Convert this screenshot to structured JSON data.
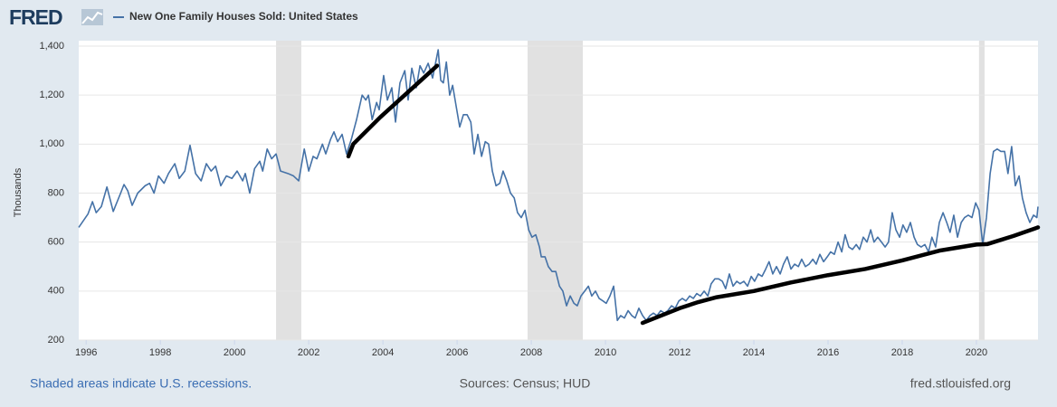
{
  "chart_data": {
    "type": "line",
    "logo": "FRED",
    "title": "New One Family Houses Sold: United States",
    "ylabel": "Thousands",
    "footer_left": "Shaded areas indicate U.S. recessions.",
    "footer_center": "Sources: Census; HUD",
    "footer_right": "fred.stlouisfed.org",
    "xlim": [
      1995.8,
      2021.66
    ],
    "xticks": [
      1996,
      1998,
      2000,
      2002,
      2004,
      2006,
      2008,
      2010,
      2012,
      2014,
      2016,
      2018,
      2020
    ],
    "ylim": [
      200,
      1400
    ],
    "yticks": [
      200,
      400,
      600,
      800,
      {
        "value": 1000,
        "label": "1,000"
      },
      {
        "value": 1200,
        "label": "1,200"
      },
      {
        "value": 1400,
        "label": "1,400"
      }
    ],
    "grid": true,
    "recessions": [
      [
        2001.12,
        2001.8
      ],
      [
        2007.9,
        2009.39
      ],
      [
        2020.07,
        2020.22
      ]
    ],
    "recession_color": "#e1e1e1",
    "series": [
      {
        "name": "New One Family Houses Sold: United States",
        "color": "#4572a7",
        "x": [
          1995.8,
          1996.05,
          1996.17,
          1996.27,
          1996.41,
          1996.56,
          1996.73,
          1996.93,
          1997.02,
          1997.12,
          1997.24,
          1997.39,
          1997.59,
          1997.71,
          1997.83,
          1997.95,
          1998.1,
          1998.22,
          1998.39,
          1998.51,
          1998.66,
          1998.8,
          1998.95,
          1999.1,
          1999.24,
          1999.37,
          1999.49,
          1999.63,
          1999.78,
          1999.93,
          2000.07,
          2000.22,
          2000.29,
          2000.41,
          2000.54,
          2000.68,
          2000.76,
          2000.88,
          2001.0,
          2001.12,
          2001.24,
          2001.44,
          2001.59,
          2001.73,
          2001.88,
          2002.0,
          2002.12,
          2002.22,
          2002.37,
          2002.46,
          2002.59,
          2002.68,
          2002.78,
          2002.9,
          2003.02,
          2003.15,
          2003.29,
          2003.44,
          2003.54,
          2003.61,
          2003.71,
          2003.83,
          2003.9,
          2004.02,
          2004.12,
          2004.24,
          2004.34,
          2004.46,
          2004.59,
          2004.68,
          2004.78,
          2004.9,
          2005.0,
          2005.1,
          2005.22,
          2005.34,
          2005.49,
          2005.56,
          2005.63,
          2005.71,
          2005.8,
          2005.88,
          2005.98,
          2006.07,
          2006.17,
          2006.27,
          2006.37,
          2006.46,
          2006.56,
          2006.66,
          2006.76,
          2006.85,
          2006.95,
          2007.05,
          2007.15,
          2007.24,
          2007.34,
          2007.44,
          2007.54,
          2007.63,
          2007.73,
          2007.83,
          2007.93,
          2008.02,
          2008.12,
          2008.22,
          2008.27,
          2008.37,
          2008.46,
          2008.56,
          2008.66,
          2008.76,
          2008.85,
          2008.95,
          2009.05,
          2009.15,
          2009.24,
          2009.34,
          2009.44,
          2009.54,
          2009.63,
          2009.73,
          2009.83,
          2009.93,
          2010.02,
          2010.12,
          2010.22,
          2010.32,
          2010.41,
          2010.51,
          2010.61,
          2010.71,
          2010.8,
          2010.9,
          2011.0,
          2011.1,
          2011.2,
          2011.29,
          2011.39,
          2011.49,
          2011.59,
          2011.68,
          2011.78,
          2011.88,
          2011.98,
          2012.07,
          2012.17,
          2012.27,
          2012.37,
          2012.46,
          2012.56,
          2012.66,
          2012.76,
          2012.85,
          2012.95,
          2013.05,
          2013.15,
          2013.24,
          2013.34,
          2013.44,
          2013.54,
          2013.63,
          2013.73,
          2013.83,
          2013.93,
          2014.02,
          2014.12,
          2014.22,
          2014.32,
          2014.41,
          2014.51,
          2014.61,
          2014.71,
          2014.8,
          2014.9,
          2015.0,
          2015.1,
          2015.2,
          2015.29,
          2015.39,
          2015.49,
          2015.59,
          2015.68,
          2015.78,
          2015.88,
          2015.98,
          2016.07,
          2016.17,
          2016.27,
          2016.37,
          2016.46,
          2016.56,
          2016.66,
          2016.76,
          2016.85,
          2016.95,
          2017.05,
          2017.15,
          2017.24,
          2017.34,
          2017.44,
          2017.54,
          2017.63,
          2017.73,
          2017.83,
          2017.93,
          2018.02,
          2018.12,
          2018.22,
          2018.32,
          2018.41,
          2018.51,
          2018.61,
          2018.71,
          2018.8,
          2018.9,
          2019.0,
          2019.1,
          2019.2,
          2019.29,
          2019.39,
          2019.49,
          2019.59,
          2019.68,
          2019.78,
          2019.88,
          2019.98,
          2020.07,
          2020.17,
          2020.27,
          2020.37,
          2020.46,
          2020.56,
          2020.66,
          2020.76,
          2020.85,
          2020.95,
          2021.05,
          2021.15,
          2021.24,
          2021.34,
          2021.44,
          2021.54,
          2021.63,
          2021.66
        ],
        "values": [
          660,
          715,
          765,
          720,
          745,
          825,
          725,
          800,
          835,
          810,
          750,
          800,
          830,
          840,
          800,
          870,
          840,
          880,
          920,
          860,
          890,
          995,
          880,
          850,
          920,
          890,
          910,
          830,
          870,
          860,
          890,
          850,
          880,
          800,
          900,
          930,
          890,
          980,
          940,
          960,
          890,
          880,
          870,
          850,
          980,
          890,
          950,
          940,
          1000,
          960,
          1020,
          1050,
          1010,
          1040,
          960,
          1020,
          1100,
          1200,
          1180,
          1200,
          1100,
          1170,
          1140,
          1280,
          1180,
          1230,
          1090,
          1250,
          1300,
          1180,
          1310,
          1230,
          1320,
          1290,
          1330,
          1270,
          1385,
          1260,
          1250,
          1335,
          1200,
          1240,
          1150,
          1070,
          1120,
          1120,
          1090,
          960,
          1040,
          950,
          1010,
          1000,
          890,
          830,
          840,
          890,
          850,
          800,
          780,
          720,
          700,
          730,
          650,
          620,
          630,
          580,
          540,
          540,
          500,
          480,
          480,
          420,
          400,
          340,
          380,
          350,
          340,
          380,
          400,
          420,
          380,
          400,
          370,
          360,
          350,
          380,
          420,
          280,
          300,
          290,
          320,
          300,
          290,
          330,
          300,
          280,
          300,
          310,
          300,
          320,
          310,
          320,
          340,
          330,
          360,
          370,
          360,
          380,
          370,
          390,
          380,
          400,
          380,
          430,
          450,
          450,
          440,
          410,
          470,
          420,
          440,
          430,
          440,
          420,
          460,
          440,
          470,
          460,
          490,
          520,
          470,
          500,
          470,
          510,
          540,
          490,
          510,
          500,
          530,
          500,
          510,
          530,
          510,
          550,
          520,
          540,
          560,
          550,
          600,
          560,
          630,
          580,
          570,
          590,
          570,
          620,
          600,
          650,
          600,
          620,
          600,
          580,
          600,
          720,
          650,
          620,
          670,
          640,
          680,
          620,
          590,
          580,
          590,
          560,
          620,
          580,
          680,
          720,
          680,
          640,
          710,
          620,
          680,
          700,
          710,
          700,
          760,
          730,
          590,
          700,
          880,
          970,
          980,
          970,
          970,
          880,
          990,
          830,
          870,
          780,
          720,
          680,
          710,
          700,
          745
        ]
      }
    ],
    "trend_lines": [
      {
        "color": "#000000",
        "x": [
          2003.07,
          2003.2,
          2003.93,
          2004.66,
          2005.46
        ],
        "values": [
          950,
          1000,
          1110,
          1210,
          1320
        ]
      },
      {
        "color": "#000000",
        "x": [
          2011.0,
          2011.5,
          2012.0,
          2012.5,
          2013.0,
          2014.0,
          2015.0,
          2016.0,
          2017.0,
          2018.0,
          2019.0,
          2020.0,
          2020.3,
          2021.0,
          2021.66
        ],
        "values": [
          270,
          300,
          330,
          355,
          375,
          400,
          435,
          465,
          490,
          525,
          565,
          590,
          592,
          625,
          660
        ]
      }
    ]
  }
}
